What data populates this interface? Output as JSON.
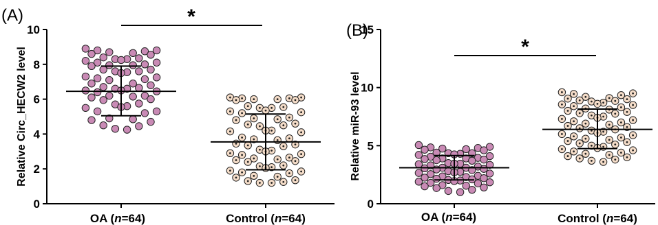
{
  "chart_data": [
    {
      "type": "scatter",
      "panel_label": "(A)",
      "ylabel": "Relative Circ_HECW2 level",
      "ylim": [
        0,
        10
      ],
      "yticks": [
        0,
        2,
        4,
        6,
        8,
        10
      ],
      "significance": "*",
      "groups": [
        {
          "label": "OA (",
          "label_n": "n",
          "label_suffix": "=64)",
          "color": "#c98ab5",
          "marker": "filled-circle",
          "mean": 6.45,
          "sd_upper": 7.9,
          "sd_lower": 5.05,
          "values": [
            8.8,
            8.55,
            8.65,
            8.75,
            8.6,
            8.8,
            8.9,
            8.7,
            8.3,
            8.35,
            8.2,
            8.4,
            8.3,
            8.25,
            8.1,
            7.95,
            7.95,
            8.0,
            7.9,
            8.1,
            7.6,
            7.7,
            7.6,
            7.55,
            7.5,
            7.7,
            7.2,
            7.25,
            7.15,
            7.3,
            7.1,
            6.9,
            6.9,
            6.8,
            6.7,
            6.6,
            6.65,
            6.5,
            6.6,
            6.45,
            6.4,
            6.5,
            6.2,
            6.1,
            6.2,
            6.15,
            6.0,
            5.95,
            5.7,
            5.75,
            5.6,
            5.55,
            5.5,
            5.3,
            5.3,
            5.2,
            4.9,
            4.85,
            4.8,
            4.7,
            4.5,
            4.45,
            4.3,
            4.25
          ]
        },
        {
          "label": "Control (",
          "label_n": "n",
          "label_suffix": "=64)",
          "color": "#f4dcc8",
          "marker": "dotted-circle",
          "mean": 3.55,
          "sd_upper": 5.15,
          "sd_lower": 1.95,
          "values": [
            6.05,
            6.1,
            6.05,
            6.0,
            6.1,
            5.95,
            6.0,
            5.95,
            5.5,
            5.6,
            5.55,
            5.5,
            5.3,
            5.35,
            5.25,
            5.2,
            4.9,
            4.95,
            4.85,
            4.8,
            4.6,
            4.55,
            4.5,
            4.45,
            4.2,
            4.2,
            4.15,
            4.1,
            3.75,
            3.8,
            3.7,
            3.65,
            3.4,
            3.45,
            3.35,
            3.3,
            3.1,
            3.05,
            3.0,
            2.9,
            2.8,
            2.85,
            2.65,
            2.6,
            2.55,
            2.5,
            2.45,
            2.4,
            2.2,
            2.15,
            2.1,
            2.05,
            1.9,
            1.85,
            1.8,
            1.75,
            1.6,
            1.55,
            1.5,
            1.35,
            1.3,
            1.25,
            1.2,
            1.2
          ]
        }
      ]
    },
    {
      "type": "scatter",
      "panel_label": "(B)",
      "ylabel": "Relative miR-93 level",
      "ylim": [
        0,
        15
      ],
      "yticks": [
        0,
        5,
        10,
        15
      ],
      "significance": "*",
      "groups": [
        {
          "label": "OA (",
          "label_n": "n",
          "label_suffix": "=64)",
          "color": "#c98ab5",
          "marker": "filled-circle",
          "mean": 3.1,
          "sd_upper": 4.15,
          "sd_lower": 2.05,
          "values": [
            4.85,
            5.05,
            4.8,
            4.75,
            4.9,
            4.7,
            4.65,
            4.6,
            4.4,
            4.35,
            4.3,
            4.25,
            4.2,
            4.35,
            4.1,
            4.05,
            3.9,
            3.95,
            3.85,
            3.8,
            3.9,
            3.75,
            3.7,
            3.5,
            3.45,
            3.4,
            3.35,
            3.3,
            3.45,
            3.2,
            3.1,
            3.05,
            3.0,
            2.95,
            3.1,
            2.9,
            2.8,
            2.75,
            2.7,
            2.65,
            2.6,
            2.55,
            2.4,
            2.35,
            2.3,
            2.25,
            2.2,
            2.15,
            2.1,
            2.05,
            2.0,
            1.95,
            1.9,
            1.85,
            1.8,
            1.75,
            1.6,
            1.55,
            1.5,
            1.4,
            1.35,
            1.2,
            1.1,
            1.0
          ]
        },
        {
          "label": "Control (",
          "label_n": "n",
          "label_suffix": "=64)",
          "color": "#f4dcc8",
          "marker": "dotted-circle",
          "mean": 6.4,
          "sd_upper": 8.15,
          "sd_lower": 4.75,
          "values": [
            9.6,
            9.5,
            9.45,
            9.35,
            9.2,
            9.1,
            9.05,
            9.0,
            8.9,
            8.85,
            8.8,
            8.7,
            8.6,
            8.55,
            8.5,
            8.4,
            8.3,
            8.2,
            8.1,
            8.0,
            7.9,
            7.8,
            7.75,
            7.6,
            7.5,
            7.4,
            7.3,
            7.2,
            7.1,
            7.0,
            6.9,
            6.8,
            6.7,
            6.6,
            6.5,
            6.4,
            6.3,
            6.2,
            6.1,
            6.0,
            5.9,
            5.8,
            5.7,
            5.6,
            5.5,
            5.4,
            5.3,
            5.2,
            5.1,
            5.0,
            4.9,
            4.8,
            4.7,
            4.6,
            4.5,
            4.4,
            4.3,
            4.2,
            4.1,
            4.0,
            3.9,
            3.8,
            3.7,
            3.6
          ]
        }
      ]
    }
  ]
}
